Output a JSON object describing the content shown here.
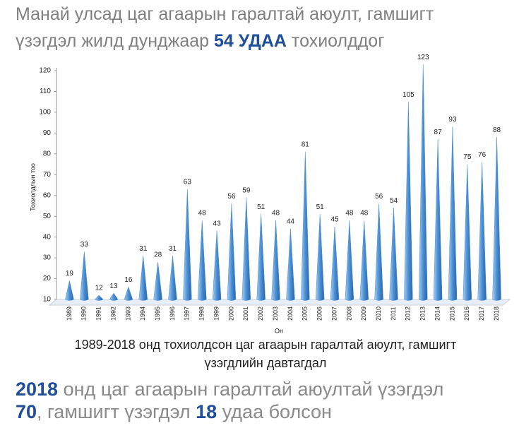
{
  "header": {
    "line1": "Манай улсад цаг агаарын гаралтай аюулт, гамшигт",
    "line2_start": "үзэгдэл жилд дунджаар ",
    "line2_bold": "54 УДАА",
    "line2_end": " тохиолддог"
  },
  "chart_data": {
    "type": "cone",
    "categories": [
      "1989",
      "1990",
      "1991",
      "1992",
      "1993",
      "1994",
      "1995",
      "1996",
      "1997",
      "1998",
      "1999",
      "2000",
      "2001",
      "2002",
      "2003",
      "2004",
      "2005",
      "2006",
      "2007",
      "2008",
      "2009",
      "2010",
      "2011",
      "2012",
      "2013",
      "2014",
      "2015",
      "2016",
      "2017",
      "2018"
    ],
    "values": [
      19,
      33,
      12,
      13,
      16,
      31,
      28,
      31,
      63,
      48,
      43,
      56,
      59,
      51,
      48,
      44,
      81,
      51,
      45,
      48,
      48,
      56,
      54,
      105,
      123,
      87,
      93,
      75,
      76,
      88
    ],
    "color": "#4a8fd4",
    "ylim": [
      10,
      120
    ],
    "yticks": [
      10,
      20,
      30,
      40,
      50,
      60,
      70,
      80,
      90,
      100,
      110,
      120
    ],
    "grid": false,
    "y_label": "Тохиолдлын тоо",
    "x_label": "Он",
    "caption_line1": "1989-2018 онд тохиолдсон цаг агаарын гаралтай аюулт, гамшигт",
    "caption_line2": "үзэгдлийн давтагдал"
  },
  "footer": {
    "line1_bold": "2018",
    "line1_rest": " онд цаг агаарын гаралтай аюултай үзэгдэл",
    "line2_bold1": "70",
    "line2_mid": ", гамшигт үзэгдэл ",
    "line2_bold2": "18",
    "line2_end": " удаа болсон"
  }
}
